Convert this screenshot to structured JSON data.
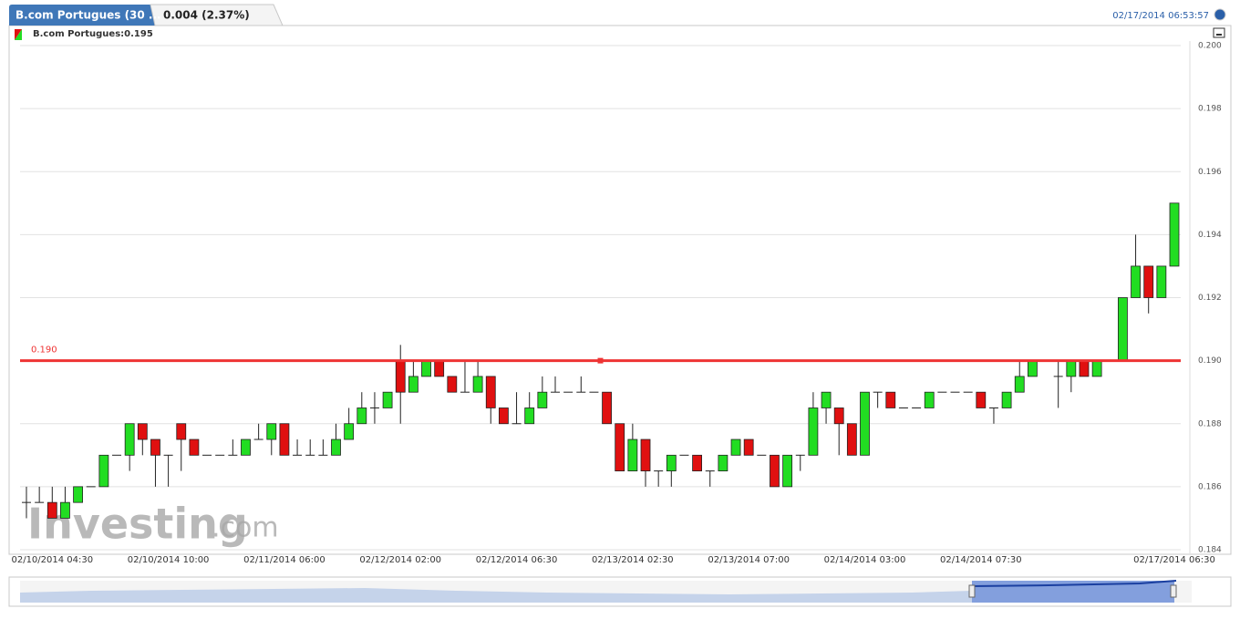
{
  "header": {
    "tab": "B.com Portugues (30 ...",
    "change": "0.004 (2.37%)",
    "timestamp": "02/17/2014 06:53:57"
  },
  "chart_data": {
    "type": "candlestick",
    "legend": "B.com Portugues:0.195",
    "watermark": {
      "brand": "Investing",
      "suffix": ".com"
    },
    "up_color": "#22dd22",
    "down_color": "#e01010",
    "hline": {
      "value": 0.19,
      "label": "0.190",
      "color": "#ee3333"
    },
    "ylim": [
      0.184,
      0.2
    ],
    "yticks": [
      {
        "value": 0.2,
        "label": "0.200"
      },
      0.198,
      0.196,
      0.194,
      0.192,
      {
        "value": 0.19,
        "label": "0.190"
      },
      0.188,
      0.186,
      0.184
    ],
    "grid": true,
    "categories": [
      null,
      null,
      "02/10/2014 04:30",
      null,
      null,
      null,
      null,
      null,
      null,
      null,
      null,
      "02/10/2014 10:00",
      null,
      null,
      null,
      null,
      null,
      null,
      null,
      null,
      "02/11/2014 06:00",
      null,
      null,
      null,
      null,
      null,
      null,
      null,
      null,
      "02/12/2014 02:00",
      null,
      null,
      null,
      null,
      null,
      null,
      null,
      null,
      "02/12/2014 06:30",
      null,
      null,
      null,
      null,
      null,
      null,
      null,
      null,
      "02/13/2014 02:30",
      null,
      null,
      null,
      null,
      null,
      null,
      null,
      null,
      "02/13/2014 07:00",
      null,
      null,
      null,
      null,
      null,
      null,
      null,
      null,
      "02/14/2014 03:00",
      null,
      null,
      null,
      null,
      null,
      null,
      null,
      null,
      "02/14/2014 07:30",
      null,
      null,
      null,
      null,
      null,
      null,
      null,
      null,
      null,
      null,
      null,
      null,
      null,
      null,
      "02/17/2014 06:30"
    ],
    "open": [
      0.1855,
      0.1855,
      0.1855,
      0.185,
      0.1855,
      0.186,
      0.186,
      0.187,
      0.187,
      0.188,
      0.1875,
      0.187,
      0.188,
      0.1875,
      0.187,
      0.187,
      0.187,
      0.187,
      0.1875,
      0.1875,
      0.188,
      0.187,
      0.187,
      0.187,
      0.187,
      0.1875,
      0.188,
      0.1885,
      0.1885,
      0.19,
      0.189,
      0.1895,
      0.19,
      0.1895,
      0.189,
      0.189,
      0.1895,
      0.1885,
      0.188,
      0.188,
      0.1885,
      0.189,
      0.189,
      0.189,
      0.189,
      0.189,
      0.188,
      0.1865,
      0.1875,
      0.1865,
      0.1865,
      0.187,
      0.187,
      0.1865,
      0.1865,
      0.187,
      0.1875,
      0.187,
      0.187,
      0.186,
      0.187,
      0.187,
      0.1885,
      0.1885,
      0.188,
      0.187,
      0.189,
      0.189,
      0.1885,
      0.1885,
      0.1885,
      0.189,
      0.189,
      0.189,
      0.189,
      0.1885,
      0.1885,
      0.189,
      0.1895,
      0.19,
      0.1895,
      0.1895,
      0.19,
      0.1895,
      0.19,
      0.19,
      0.192,
      0.193,
      0.192,
      0.193
    ],
    "high": [
      0.186,
      0.186,
      0.186,
      0.186,
      0.186,
      0.186,
      0.187,
      0.187,
      0.188,
      0.188,
      0.1875,
      0.187,
      0.188,
      0.1875,
      0.187,
      0.187,
      0.1875,
      0.1875,
      0.188,
      0.188,
      0.188,
      0.1875,
      0.1875,
      0.1875,
      0.188,
      0.1885,
      0.189,
      0.189,
      0.189,
      0.1905,
      0.19,
      0.19,
      0.19,
      0.1895,
      0.19,
      0.19,
      0.1895,
      0.1885,
      0.189,
      0.189,
      0.1895,
      0.1895,
      0.189,
      0.1895,
      0.189,
      0.189,
      0.188,
      0.188,
      0.1875,
      0.1865,
      0.187,
      0.187,
      0.187,
      0.1865,
      0.187,
      0.1875,
      0.1875,
      0.187,
      0.187,
      0.187,
      0.187,
      0.189,
      0.189,
      0.1885,
      0.188,
      0.189,
      0.189,
      0.189,
      0.1885,
      0.1885,
      0.189,
      0.189,
      0.189,
      0.189,
      0.189,
      0.1885,
      0.189,
      0.19,
      0.19,
      0.19,
      0.19,
      0.19,
      0.19,
      0.19,
      0.19,
      0.192,
      0.194,
      0.193,
      0.193,
      0.195
    ],
    "low": [
      0.185,
      0.1855,
      0.185,
      0.185,
      0.1855,
      0.186,
      0.186,
      0.187,
      0.1865,
      0.187,
      0.186,
      0.186,
      0.1865,
      0.187,
      0.187,
      0.187,
      0.187,
      0.187,
      0.1875,
      0.187,
      0.187,
      0.187,
      0.187,
      0.187,
      0.187,
      0.1875,
      0.188,
      0.188,
      0.1885,
      0.188,
      0.189,
      0.1895,
      0.1895,
      0.189,
      0.189,
      0.189,
      0.188,
      0.188,
      0.188,
      0.188,
      0.1885,
      0.189,
      0.189,
      0.189,
      0.189,
      0.188,
      0.1865,
      0.1865,
      0.186,
      0.186,
      0.186,
      0.187,
      0.1865,
      0.186,
      0.1865,
      0.187,
      0.187,
      0.187,
      0.186,
      0.186,
      0.1865,
      0.187,
      0.188,
      0.187,
      0.187,
      0.187,
      0.1885,
      0.1885,
      0.1885,
      0.1885,
      0.1885,
      0.189,
      0.189,
      0.189,
      0.1885,
      0.188,
      0.1885,
      0.189,
      0.1895,
      0.19,
      0.1885,
      0.189,
      0.1895,
      0.1895,
      0.19,
      0.19,
      0.192,
      0.1915,
      0.192,
      0.193
    ],
    "close": [
      0.1855,
      0.1855,
      0.185,
      0.1855,
      0.186,
      0.186,
      0.187,
      0.187,
      0.188,
      0.1875,
      0.187,
      0.187,
      0.1875,
      0.187,
      0.187,
      0.187,
      0.187,
      0.1875,
      0.1875,
      0.188,
      0.187,
      0.187,
      0.187,
      0.187,
      0.1875,
      0.188,
      0.1885,
      0.1885,
      0.189,
      0.189,
      0.1895,
      0.19,
      0.1895,
      0.189,
      0.189,
      0.1895,
      0.1885,
      0.188,
      0.188,
      0.1885,
      0.189,
      0.189,
      0.189,
      0.189,
      0.189,
      0.188,
      0.1865,
      0.1875,
      0.1865,
      0.1865,
      0.187,
      0.187,
      0.1865,
      0.1865,
      0.187,
      0.1875,
      0.187,
      0.187,
      0.186,
      0.187,
      0.187,
      0.1885,
      0.189,
      0.188,
      0.187,
      0.189,
      0.189,
      0.1885,
      0.1885,
      0.1885,
      0.189,
      0.189,
      0.189,
      0.189,
      0.1885,
      0.1885,
      0.189,
      0.1895,
      0.19,
      0.19,
      0.1895,
      0.19,
      0.1895,
      0.19,
      0.19,
      0.192,
      0.193,
      0.192,
      0.193,
      0.195
    ]
  }
}
